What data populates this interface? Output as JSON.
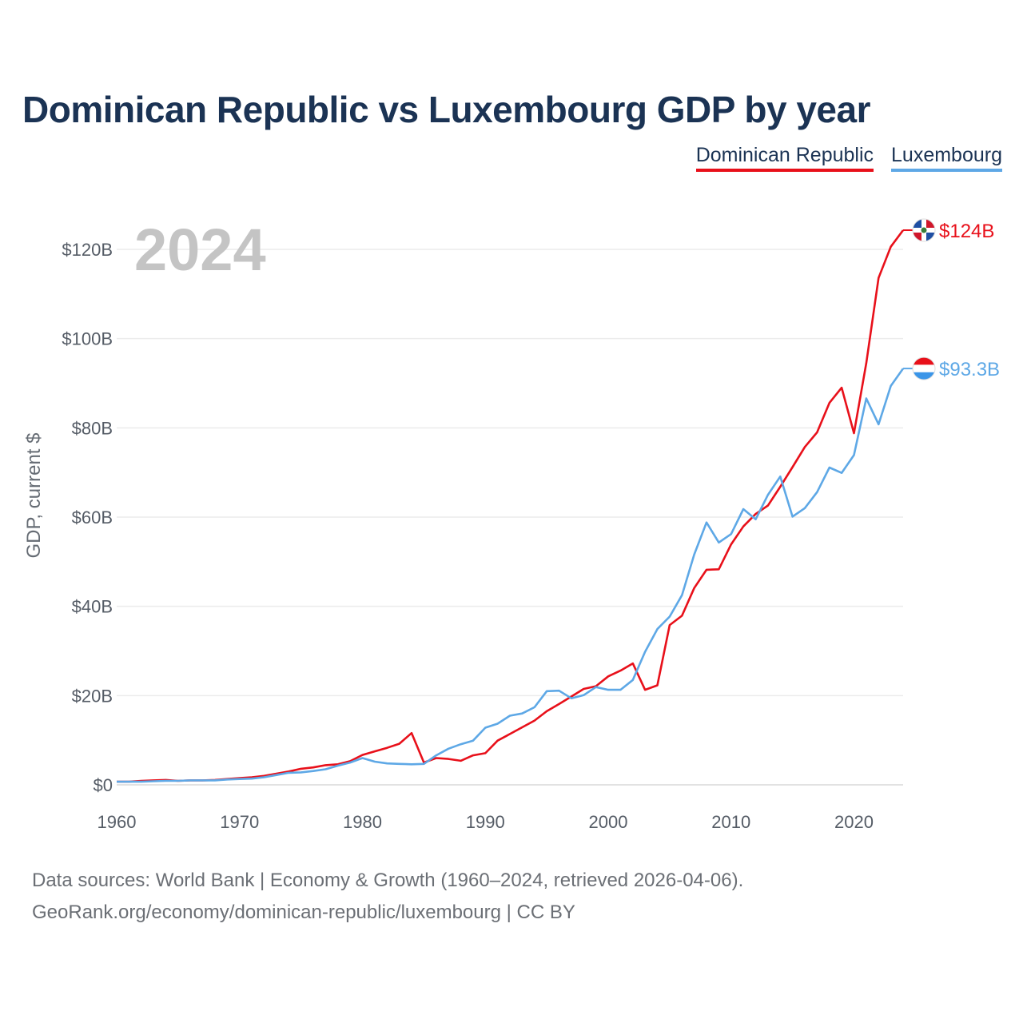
{
  "title": "Dominican Republic vs Luxembourg GDP by year",
  "legend": [
    {
      "name": "Dominican Republic",
      "color": "#e8101a"
    },
    {
      "name": "Luxembourg",
      "color": "#5ea8e6"
    }
  ],
  "source": {
    "line1": "Data sources: World Bank | Economy & Growth (1960–2024, retrieved 2026-04-06).",
    "line2": "GeoRank.org/economy/dominican-republic/luxembourg | CC BY"
  },
  "chart_data": {
    "type": "line",
    "title": "Dominican Republic vs Luxembourg GDP by year",
    "xlabel": "",
    "ylabel": "GDP, current $",
    "year_label": "2024",
    "xlim": [
      1960,
      2024
    ],
    "ylim": [
      0,
      130
    ],
    "x_ticks": [
      1960,
      1970,
      1980,
      1990,
      2000,
      2010,
      2020
    ],
    "y_ticks": [
      0,
      20,
      40,
      60,
      80,
      100,
      120
    ],
    "y_tick_labels": [
      "$0",
      "$20B",
      "$40B",
      "$60B",
      "$80B",
      "$100B",
      "$120B"
    ],
    "x": [
      1960,
      1961,
      1962,
      1963,
      1964,
      1965,
      1966,
      1967,
      1968,
      1969,
      1970,
      1971,
      1972,
      1973,
      1974,
      1975,
      1976,
      1977,
      1978,
      1979,
      1980,
      1981,
      1982,
      1983,
      1984,
      1985,
      1986,
      1987,
      1988,
      1989,
      1990,
      1991,
      1992,
      1993,
      1994,
      1995,
      1996,
      1997,
      1998,
      1999,
      2000,
      2001,
      2002,
      2003,
      2004,
      2005,
      2006,
      2007,
      2008,
      2009,
      2010,
      2011,
      2012,
      2013,
      2014,
      2015,
      2016,
      2017,
      2018,
      2019,
      2020,
      2021,
      2022,
      2023,
      2024
    ],
    "series": [
      {
        "name": "Dominican Republic",
        "color": "#e8101a",
        "end_label": "$124B",
        "values": [
          0.7,
          0.7,
          0.9,
          1.0,
          1.1,
          0.9,
          1.0,
          1.0,
          1.1,
          1.3,
          1.5,
          1.7,
          2.0,
          2.5,
          3.0,
          3.6,
          3.9,
          4.4,
          4.6,
          5.3,
          6.7,
          7.5,
          8.3,
          9.2,
          11.6,
          5.0,
          6.0,
          5.8,
          5.4,
          6.6,
          7.1,
          9.9,
          11.4,
          12.9,
          14.4,
          16.5,
          18.1,
          19.8,
          21.5,
          22.1,
          24.3,
          25.6,
          27.2,
          21.3,
          22.3,
          35.8,
          37.9,
          44.1,
          48.2,
          48.3,
          53.9,
          57.9,
          60.7,
          62.6,
          66.8,
          71.2,
          75.7,
          79.0,
          85.6,
          89.0,
          78.8,
          94.5,
          113.6,
          120.6,
          124.3
        ]
      },
      {
        "name": "Luxembourg",
        "color": "#5ea8e6",
        "end_label": "$93.3B",
        "values": [
          0.7,
          0.7,
          0.7,
          0.8,
          0.9,
          0.9,
          1.0,
          1.0,
          1.0,
          1.2,
          1.3,
          1.4,
          1.7,
          2.2,
          2.7,
          2.8,
          3.1,
          3.5,
          4.3,
          5.0,
          6.0,
          5.2,
          4.8,
          4.7,
          4.6,
          4.7,
          6.6,
          8.1,
          9.1,
          9.9,
          12.8,
          13.7,
          15.5,
          16.0,
          17.4,
          21.0,
          21.1,
          19.4,
          20.1,
          21.9,
          21.3,
          21.3,
          23.5,
          29.8,
          34.9,
          37.7,
          42.5,
          51.6,
          58.8,
          54.3,
          56.2,
          61.8,
          59.5,
          65.0,
          69.1,
          60.1,
          62.0,
          65.6,
          71.1,
          69.9,
          73.9,
          86.6,
          80.8,
          89.4,
          93.3
        ]
      }
    ]
  }
}
